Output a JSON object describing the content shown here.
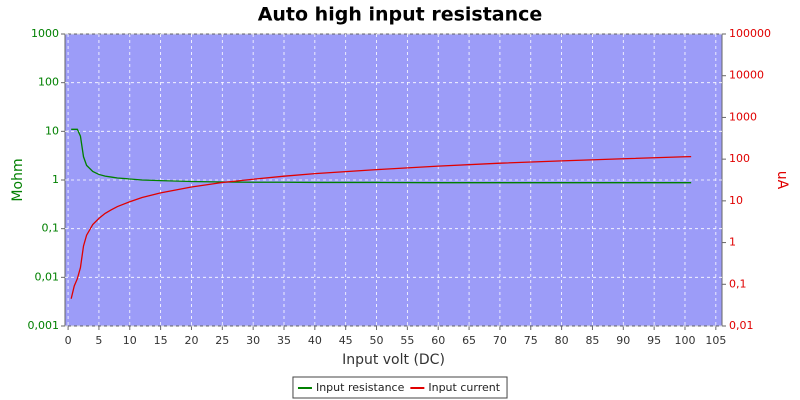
{
  "chart_data": {
    "type": "line",
    "title": "Auto high input resistance",
    "x_label": "Input volt (DC)",
    "y_label": "Mohm",
    "y2_label": "uA",
    "x": [
      0.5,
      1,
      1.5,
      2,
      2.5,
      3,
      4,
      5,
      6,
      7,
      8,
      10,
      12,
      15,
      20,
      25,
      30,
      35,
      40,
      50,
      60,
      70,
      80,
      90,
      100,
      101
    ],
    "series": [
      {
        "name": "Input resistance",
        "color": "#008000",
        "axis": "y",
        "values": [
          11,
          11,
          11,
          8,
          3,
          2,
          1.5,
          1.3,
          1.2,
          1.15,
          1.1,
          1.05,
          1.0,
          0.97,
          0.93,
          0.91,
          0.9,
          0.9,
          0.89,
          0.89,
          0.88,
          0.88,
          0.88,
          0.88,
          0.88,
          0.88
        ]
      },
      {
        "name": "Input current",
        "color": "#e00000",
        "axis": "y2",
        "values": [
          0.045,
          0.091,
          0.136,
          0.25,
          0.83,
          1.5,
          2.7,
          3.8,
          5,
          6.1,
          7.3,
          9.5,
          12,
          15.5,
          21.5,
          27.5,
          33,
          39,
          45,
          56,
          68,
          80,
          91,
          102,
          114,
          115
        ]
      }
    ],
    "xlim": [
      -0.5,
      106
    ],
    "xticks": [
      0,
      5,
      10,
      15,
      20,
      25,
      30,
      35,
      40,
      45,
      50,
      55,
      60,
      65,
      70,
      75,
      80,
      85,
      90,
      95,
      100,
      105
    ],
    "ylim": [
      0.001,
      1000
    ],
    "ylog": true,
    "yticks": [
      {
        "value": 0.001,
        "label": "0,001"
      },
      {
        "value": 0.01,
        "label": "0,01"
      },
      {
        "value": 0.1,
        "label": "0,1"
      },
      1,
      10,
      100,
      1000
    ],
    "y2lim": [
      0.01,
      100000
    ],
    "y2log": true,
    "y2ticks": [
      {
        "value": 0.01,
        "label": "0,01"
      },
      {
        "value": 0.1,
        "label": "0,1"
      },
      1,
      10,
      100,
      1000,
      10000,
      100000
    ],
    "grid": true,
    "plot_background": "#9c9cf8",
    "legend_position": "bottom"
  }
}
